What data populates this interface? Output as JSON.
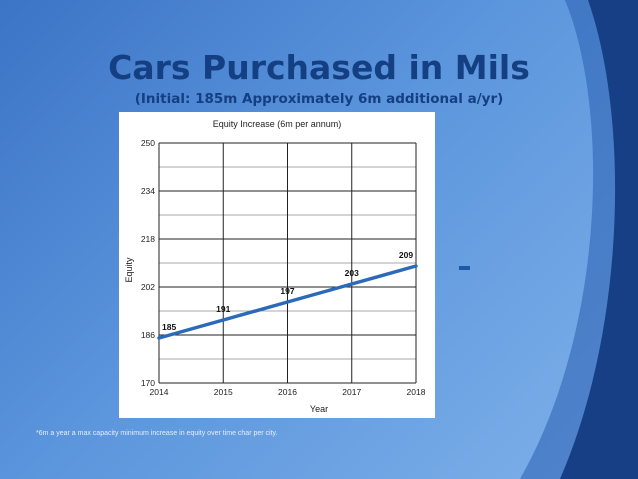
{
  "slide": {
    "title": "Cars Purchased in Mils",
    "subtitle": "(Initial: 185m Approximately 6m additional a/yr)",
    "footnote": "*6m a year a max capacity minimum increase in equity over time char per city.",
    "accent_color": "#143f82",
    "background_color": "#4f8ad6"
  },
  "chart_data": {
    "type": "line",
    "title": "Equity Increase (6m per annum)",
    "xlabel": "Year",
    "ylabel": "Equity",
    "x": [
      2014,
      2015,
      2016,
      2017,
      2018
    ],
    "series": [
      {
        "values": [
          185,
          191,
          197,
          203,
          209
        ],
        "color": "#2a6ab8"
      }
    ],
    "data_labels": [
      "185",
      "191",
      "197",
      "203",
      "209"
    ],
    "xticks": [
      "2014",
      "2015",
      "2016",
      "2017",
      "2018"
    ],
    "yticks": [
      "170",
      "186",
      "202",
      "218",
      "234",
      "250"
    ],
    "xlim": [
      2014,
      2018
    ],
    "ylim": [
      170,
      250
    ],
    "y_tick_values": [
      170,
      186,
      202,
      218,
      234,
      250
    ],
    "y_minor_step": 8,
    "grid": true,
    "legend": "none"
  }
}
